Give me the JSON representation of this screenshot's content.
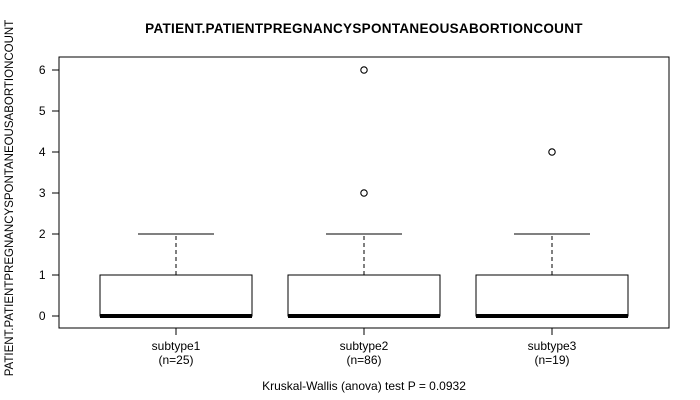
{
  "chart_data": {
    "type": "boxplot",
    "title": "PATIENT.PATIENTPREGNANCYSPONTANEOUSABORTIONCOUNT",
    "ylabel": "PATIENT.PATIENTPREGNANCYSPONTANEOUSABORTIONCOUNT",
    "xlabel": "",
    "ylim": [
      0,
      6
    ],
    "yticks": [
      0,
      1,
      2,
      3,
      4,
      5,
      6
    ],
    "grid": false,
    "legend": "none",
    "groups": [
      {
        "label": "subtype1",
        "n_label": "(n=25)",
        "n": 25,
        "q1": 0,
        "median": 0,
        "q3": 1,
        "whisker_low": 0,
        "whisker_high": 2,
        "outliers": []
      },
      {
        "label": "subtype2",
        "n_label": "(n=86)",
        "n": 86,
        "q1": 0,
        "median": 0,
        "q3": 1,
        "whisker_low": 0,
        "whisker_high": 2,
        "outliers": [
          3,
          6
        ]
      },
      {
        "label": "subtype3",
        "n_label": "(n=19)",
        "n": 19,
        "q1": 0,
        "median": 0,
        "q3": 1,
        "whisker_low": 0,
        "whisker_high": 2,
        "outliers": [
          4
        ]
      }
    ],
    "stat_test": "Kruskal-Wallis (anova) test P = 0.0932",
    "line_color": "#000000",
    "text_color": "#000000",
    "background_color": "#ffffff"
  }
}
